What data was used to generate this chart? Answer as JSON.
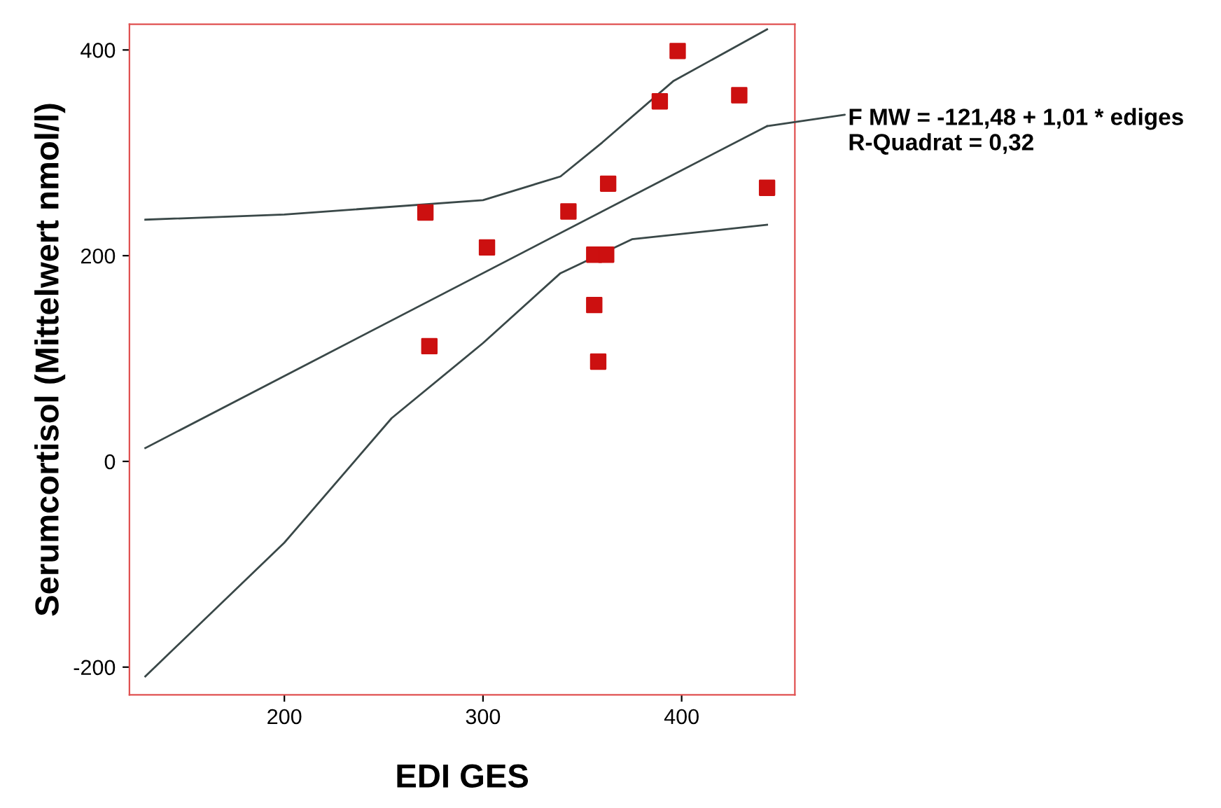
{
  "chart_data": {
    "type": "scatter",
    "xlabel": "EDI GES",
    "ylabel": "Serumcortisol (Mittelwert nmol/l)",
    "xlim": [
      122,
      457
    ],
    "ylim": [
      -227,
      425
    ],
    "xticks": [
      200,
      300,
      400
    ],
    "yticks": [
      -200,
      0,
      200,
      400
    ],
    "grid": false,
    "legend": false,
    "series": [
      {
        "marker": "square",
        "color": "#cc1010",
        "x": [
          271,
          273,
          302,
          343,
          356,
          358,
          356,
          362,
          363,
          389,
          398,
          429,
          443
        ],
        "values": [
          242,
          112,
          208,
          243,
          152,
          97,
          201,
          201,
          270,
          350,
          399,
          356,
          266
        ]
      },
      {
        "type": "line",
        "marker": "none",
        "color": "#3a4848",
        "x": [
          130,
          443
        ],
        "values": [
          13,
          326
        ]
      },
      {
        "type": "line",
        "marker": "none",
        "color": "#3a4848",
        "x": [
          130,
          200,
          300,
          339,
          360,
          396,
          443
        ],
        "values": [
          235,
          240,
          254,
          277,
          310,
          370,
          420
        ]
      },
      {
        "type": "line",
        "marker": "none",
        "color": "#3a4848",
        "x": [
          130,
          200,
          254,
          300,
          339,
          375,
          443
        ],
        "values": [
          -209,
          -79,
          42,
          115,
          183,
          216,
          230
        ]
      }
    ],
    "annotations": [
      {
        "text": "F MW = -121,48 + 1,01 * ediges\nR-Quadrat = 0,32",
        "x": 443,
        "y": 326
      }
    ]
  }
}
